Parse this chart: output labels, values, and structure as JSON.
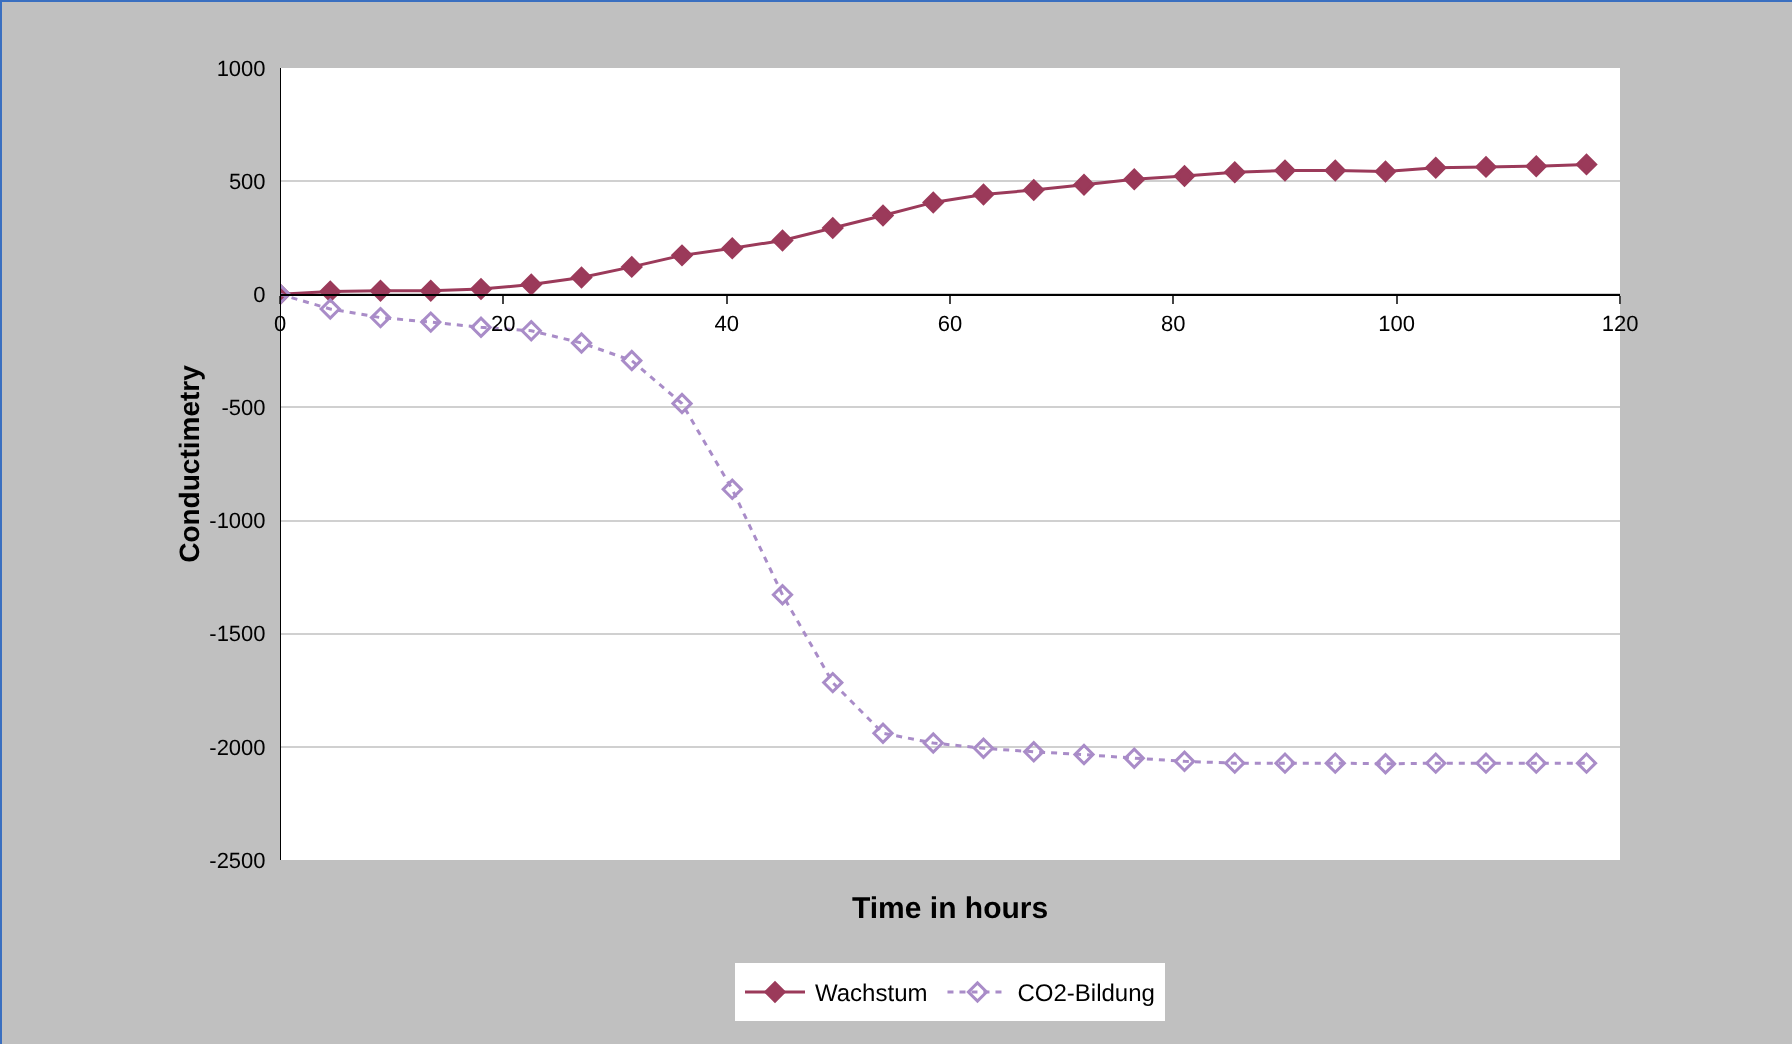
{
  "chart_data": {
    "type": "line",
    "xlabel": "Time in hours",
    "ylabel": "Conductimetry",
    "x": [
      0,
      4.5,
      9,
      13.5,
      18,
      22.5,
      27,
      31.5,
      36,
      40.5,
      45,
      49.5,
      54,
      58.5,
      63,
      67.5,
      72,
      76.5,
      81,
      85.5,
      90,
      94.5,
      99,
      103.5,
      108,
      112.5,
      117
    ],
    "series": [
      {
        "name": "Wachstum",
        "color": "#9b3a5a",
        "marker": "diamond",
        "line_style": "solid",
        "values": [
          0,
          12,
          16,
          16,
          23,
          43,
          74,
          121,
          172,
          203,
          238,
          293,
          348,
          406,
          441,
          461,
          484,
          508,
          523,
          539,
          547,
          547,
          543,
          559,
          563,
          566,
          574
        ]
      },
      {
        "name": "CO2-Bildung",
        "color": "#a98cc8",
        "marker": "diamond-open",
        "line_style": "dotted",
        "values": [
          0,
          -65,
          -103,
          -123,
          -146,
          -161,
          -215,
          -293,
          -483,
          -862,
          -1328,
          -1716,
          -1940,
          -1983,
          -2006,
          -2022,
          -2034,
          -2050,
          -2064,
          -2072,
          -2072,
          -2072,
          -2075,
          -2072,
          -2072,
          -2072,
          -2072
        ]
      }
    ],
    "xlim": [
      0,
      120
    ],
    "xticks": [
      0,
      20,
      40,
      60,
      80,
      100,
      120
    ],
    "ylim": [
      -2500,
      1000
    ],
    "yticks": [
      -2500,
      -2000,
      -1500,
      -1000,
      -500,
      0,
      500,
      1000
    ],
    "grid": "y",
    "legend": "bottom"
  }
}
